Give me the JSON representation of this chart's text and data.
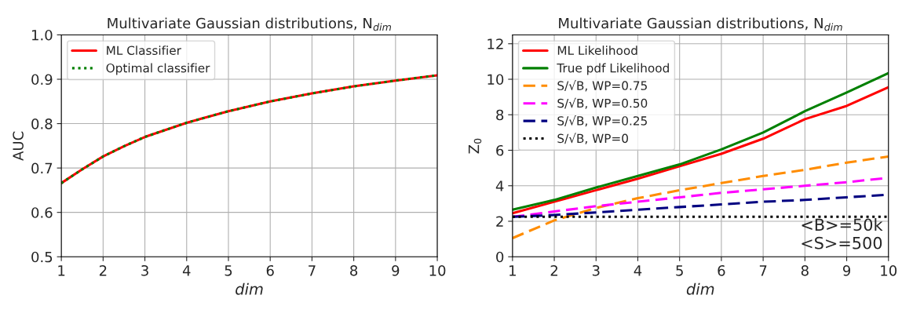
{
  "chart_data": [
    {
      "type": "line",
      "title": "Multivariate Gaussian distributions, N$_{dim}$",
      "xlabel": "dim",
      "ylabel": "AUC",
      "x": [
        1,
        1.5,
        2,
        2.5,
        3,
        4,
        5,
        6,
        7,
        8,
        9,
        10
      ],
      "series": [
        {
          "name": "ML Classifier",
          "color": "#ff0000",
          "line_style": "solid",
          "values": [
            0.666,
            0.697,
            0.726,
            0.749,
            0.77,
            0.802,
            0.828,
            0.85,
            0.868,
            0.884,
            0.897,
            0.909
          ]
        },
        {
          "name": "Optimal classifier",
          "color": "#008000",
          "line_style": "dotted",
          "values": [
            0.666,
            0.697,
            0.726,
            0.749,
            0.77,
            0.802,
            0.828,
            0.85,
            0.868,
            0.884,
            0.897,
            0.909
          ]
        }
      ],
      "xlim": [
        1,
        10
      ],
      "xticks": [
        1,
        2,
        3,
        4,
        5,
        6,
        7,
        8,
        9,
        10
      ],
      "ylim": [
        0.5,
        1.0
      ],
      "yticks": [
        {
          "value": 0.5,
          "label": "0.5"
        },
        {
          "value": 0.6,
          "label": "0.6"
        },
        {
          "value": 0.7,
          "label": "0.7"
        },
        {
          "value": 0.8,
          "label": "0.8"
        },
        {
          "value": 0.9,
          "label": "0.9"
        },
        {
          "value": 1.0,
          "label": "1.0"
        }
      ],
      "grid": true,
      "legend": "top left"
    },
    {
      "type": "line",
      "title": "Multivariate Gaussian distributions, N$_{dim}$",
      "xlabel": "dim",
      "ylabel": "Z$_{0}$",
      "x": [
        1,
        2,
        3,
        4,
        5,
        6,
        7,
        8,
        9,
        10
      ],
      "series": [
        {
          "name": "ML Likelihood",
          "color": "#ff0000",
          "line_style": "solid",
          "values": [
            2.45,
            3.1,
            3.75,
            4.4,
            5.1,
            5.8,
            6.65,
            7.75,
            8.5,
            9.55
          ]
        },
        {
          "name": "True pdf Likelihood",
          "color": "#008000",
          "line_style": "solid",
          "values": [
            2.65,
            3.2,
            3.9,
            4.55,
            5.2,
            6.05,
            7.0,
            8.2,
            9.25,
            10.35
          ]
        },
        {
          "name": "S/√B, WP=0.75",
          "color": "#ff8c00",
          "line_style": "dashed",
          "values": [
            1.05,
            2.05,
            2.75,
            3.3,
            3.75,
            4.15,
            4.55,
            4.9,
            5.3,
            5.65
          ]
        },
        {
          "name": "S/√B, WP=0.50",
          "color": "#ff00ff",
          "line_style": "dashed",
          "values": [
            2.25,
            2.55,
            2.85,
            3.1,
            3.35,
            3.6,
            3.8,
            4.0,
            4.2,
            4.45
          ]
        },
        {
          "name": "S/√B, WP=0.25",
          "color": "#000080",
          "line_style": "dashed",
          "values": [
            2.25,
            2.35,
            2.5,
            2.65,
            2.8,
            2.95,
            3.1,
            3.2,
            3.35,
            3.5
          ]
        },
        {
          "name": "S/√B, WP=0",
          "color": "#000000",
          "line_style": "dotted",
          "values": [
            2.25,
            2.25,
            2.25,
            2.25,
            2.25,
            2.25,
            2.25,
            2.25,
            2.25,
            2.25
          ]
        }
      ],
      "xlim": [
        1,
        10
      ],
      "xticks": [
        1,
        2,
        3,
        4,
        5,
        6,
        7,
        8,
        9,
        10
      ],
      "ylim": [
        0,
        12.5
      ],
      "yticks": [
        0,
        2,
        4,
        6,
        8,
        10,
        12
      ],
      "annotations": [
        "<B>=50k\n<S>=500"
      ],
      "grid": true,
      "legend": "top left"
    }
  ]
}
